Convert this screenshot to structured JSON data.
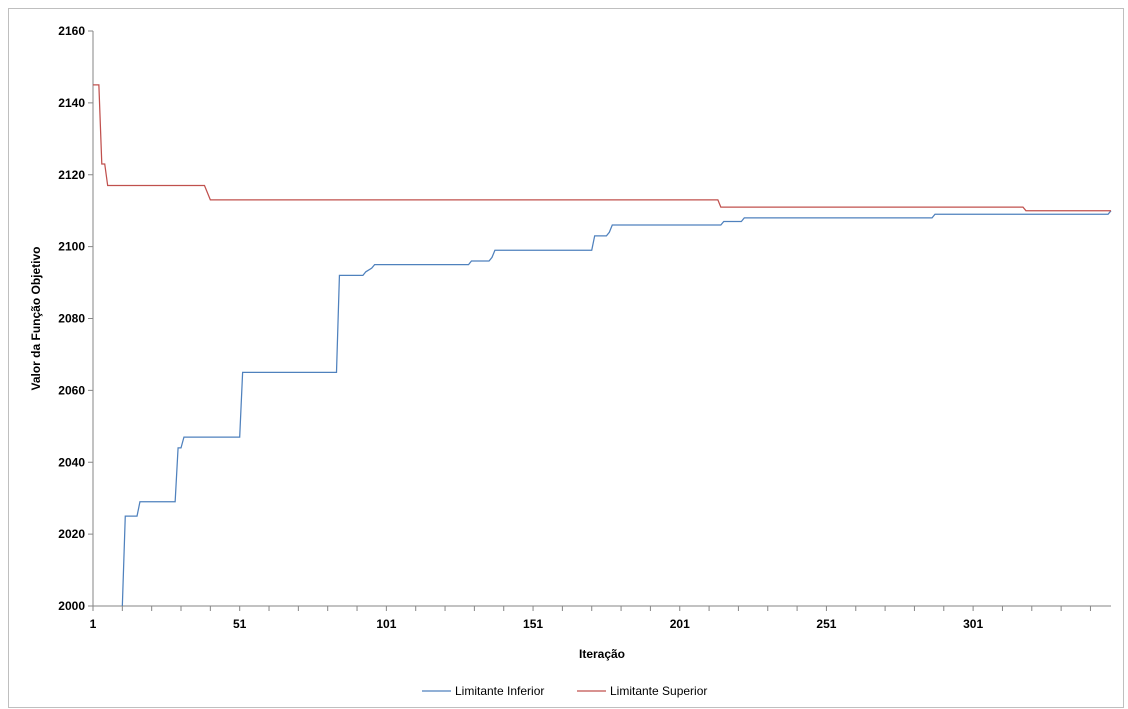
{
  "chart_data": {
    "type": "line",
    "title": "",
    "xlabel": "Iteração",
    "ylabel": "Valor da Função Objetivo",
    "xlim": [
      1,
      348
    ],
    "ylim": [
      2000,
      2160
    ],
    "x_ticks": [
      1,
      51,
      101,
      151,
      201,
      251,
      301
    ],
    "y_ticks": [
      2000,
      2020,
      2040,
      2060,
      2080,
      2100,
      2120,
      2140,
      2160
    ],
    "grid": false,
    "legend_position": "bottom",
    "series": [
      {
        "name": "Limitante Inferior",
        "color": "#4f81bd",
        "points": [
          [
            11,
            2000
          ],
          [
            12,
            2025
          ],
          [
            16,
            2025
          ],
          [
            17,
            2029
          ],
          [
            29,
            2029
          ],
          [
            30,
            2044
          ],
          [
            31,
            2044
          ],
          [
            32,
            2047
          ],
          [
            51,
            2047
          ],
          [
            52,
            2065
          ],
          [
            84,
            2065
          ],
          [
            85,
            2092
          ],
          [
            93,
            2092
          ],
          [
            94,
            2093
          ],
          [
            96,
            2094
          ],
          [
            97,
            2095
          ],
          [
            129,
            2095
          ],
          [
            130,
            2096
          ],
          [
            136,
            2096
          ],
          [
            137,
            2097
          ],
          [
            138,
            2099
          ],
          [
            171,
            2099
          ],
          [
            172,
            2103
          ],
          [
            176,
            2103
          ],
          [
            177,
            2104
          ],
          [
            178,
            2106
          ],
          [
            215,
            2106
          ],
          [
            216,
            2107
          ],
          [
            222,
            2107
          ],
          [
            223,
            2108
          ],
          [
            287,
            2108
          ],
          [
            288,
            2109
          ],
          [
            347,
            2109
          ],
          [
            348,
            2110
          ]
        ]
      },
      {
        "name": "Limitante Superior",
        "color": "#c0504d",
        "points": [
          [
            1,
            2145
          ],
          [
            3,
            2145
          ],
          [
            4,
            2123
          ],
          [
            5,
            2123
          ],
          [
            6,
            2117
          ],
          [
            39,
            2117
          ],
          [
            41,
            2113
          ],
          [
            214,
            2113
          ],
          [
            215,
            2111
          ],
          [
            318,
            2111
          ],
          [
            319,
            2110
          ],
          [
            348,
            2110
          ]
        ]
      }
    ]
  }
}
